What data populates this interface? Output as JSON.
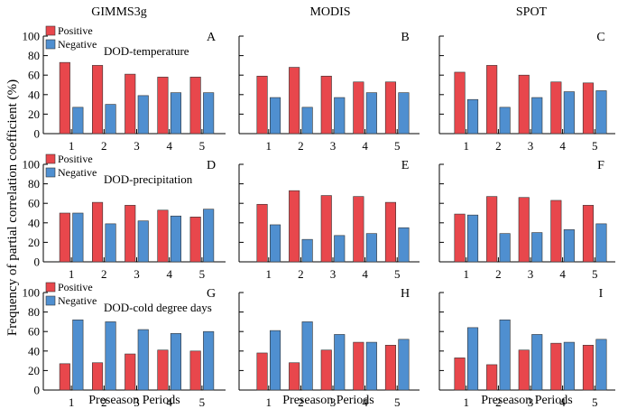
{
  "colors": {
    "positive": "#e8474c",
    "negative": "#4f8fd0"
  },
  "ylabel": "Frequency of  partial correlation coefficient (%)",
  "xlabel": "Preseason Periods",
  "legend": {
    "positive": "Positive",
    "negative": "Negative"
  },
  "columns": [
    "GIMMS3g",
    "MODIS",
    "SPOT"
  ],
  "rows": [
    "DOD-temperature",
    "DOD-precipitation",
    "DOD-cold degree days"
  ],
  "chart_data": [
    {
      "type": "bar",
      "panel": "A",
      "categories": [
        "1",
        "2",
        "3",
        "4",
        "5"
      ],
      "ylim": [
        0,
        100
      ],
      "yticks": [
        "0",
        "20",
        "40",
        "60",
        "80",
        "100"
      ],
      "series": [
        {
          "name": "Positive",
          "values": [
            73,
            70,
            61,
            58,
            58
          ]
        },
        {
          "name": "Negative",
          "values": [
            27,
            30,
            39,
            42,
            42
          ]
        }
      ]
    },
    {
      "type": "bar",
      "panel": "B",
      "categories": [
        "1",
        "2",
        "3",
        "4",
        "5"
      ],
      "ylim": [
        0,
        100
      ],
      "series": [
        {
          "name": "Positive",
          "values": [
            59,
            68,
            59,
            53,
            53
          ]
        },
        {
          "name": "Negative",
          "values": [
            37,
            27,
            37,
            42,
            42
          ]
        }
      ]
    },
    {
      "type": "bar",
      "panel": "C",
      "categories": [
        "1",
        "2",
        "3",
        "4",
        "5"
      ],
      "ylim": [
        0,
        100
      ],
      "series": [
        {
          "name": "Positive",
          "values": [
            63,
            70,
            60,
            53,
            52
          ]
        },
        {
          "name": "Negative",
          "values": [
            35,
            27,
            37,
            43,
            44
          ]
        }
      ]
    },
    {
      "type": "bar",
      "panel": "D",
      "categories": [
        "1",
        "2",
        "3",
        "4",
        "5"
      ],
      "ylim": [
        0,
        100
      ],
      "yticks": [
        "0",
        "20",
        "40",
        "60",
        "80",
        "100"
      ],
      "series": [
        {
          "name": "Positive",
          "values": [
            50,
            61,
            58,
            53,
            46
          ]
        },
        {
          "name": "Negative",
          "values": [
            50,
            39,
            42,
            47,
            54
          ]
        }
      ]
    },
    {
      "type": "bar",
      "panel": "E",
      "categories": [
        "1",
        "2",
        "3",
        "4",
        "5"
      ],
      "ylim": [
        0,
        100
      ],
      "series": [
        {
          "name": "Positive",
          "values": [
            59,
            73,
            68,
            67,
            61
          ]
        },
        {
          "name": "Negative",
          "values": [
            38,
            23,
            27,
            29,
            35
          ]
        }
      ]
    },
    {
      "type": "bar",
      "panel": "F",
      "categories": [
        "1",
        "2",
        "3",
        "4",
        "5"
      ],
      "ylim": [
        0,
        100
      ],
      "series": [
        {
          "name": "Positive",
          "values": [
            49,
            67,
            66,
            63,
            58
          ]
        },
        {
          "name": "Negative",
          "values": [
            48,
            29,
            30,
            33,
            39
          ]
        }
      ]
    },
    {
      "type": "bar",
      "panel": "G",
      "categories": [
        "1",
        "2",
        "3",
        "4",
        "5"
      ],
      "ylim": [
        0,
        100
      ],
      "yticks": [
        "0",
        "20",
        "40",
        "60",
        "80",
        "100"
      ],
      "series": [
        {
          "name": "Positive",
          "values": [
            27,
            28,
            37,
            41,
            40
          ]
        },
        {
          "name": "Negative",
          "values": [
            72,
            70,
            62,
            58,
            60
          ]
        }
      ]
    },
    {
      "type": "bar",
      "panel": "H",
      "categories": [
        "1",
        "2",
        "3",
        "4",
        "5"
      ],
      "ylim": [
        0,
        100
      ],
      "series": [
        {
          "name": "Positive",
          "values": [
            38,
            28,
            41,
            49,
            46
          ]
        },
        {
          "name": "Negative",
          "values": [
            61,
            70,
            57,
            49,
            52
          ]
        }
      ]
    },
    {
      "type": "bar",
      "panel": "I",
      "categories": [
        "1",
        "2",
        "3",
        "4",
        "5"
      ],
      "ylim": [
        0,
        100
      ],
      "series": [
        {
          "name": "Positive",
          "values": [
            33,
            26,
            41,
            48,
            46
          ]
        },
        {
          "name": "Negative",
          "values": [
            64,
            72,
            57,
            49,
            52
          ]
        }
      ]
    }
  ]
}
